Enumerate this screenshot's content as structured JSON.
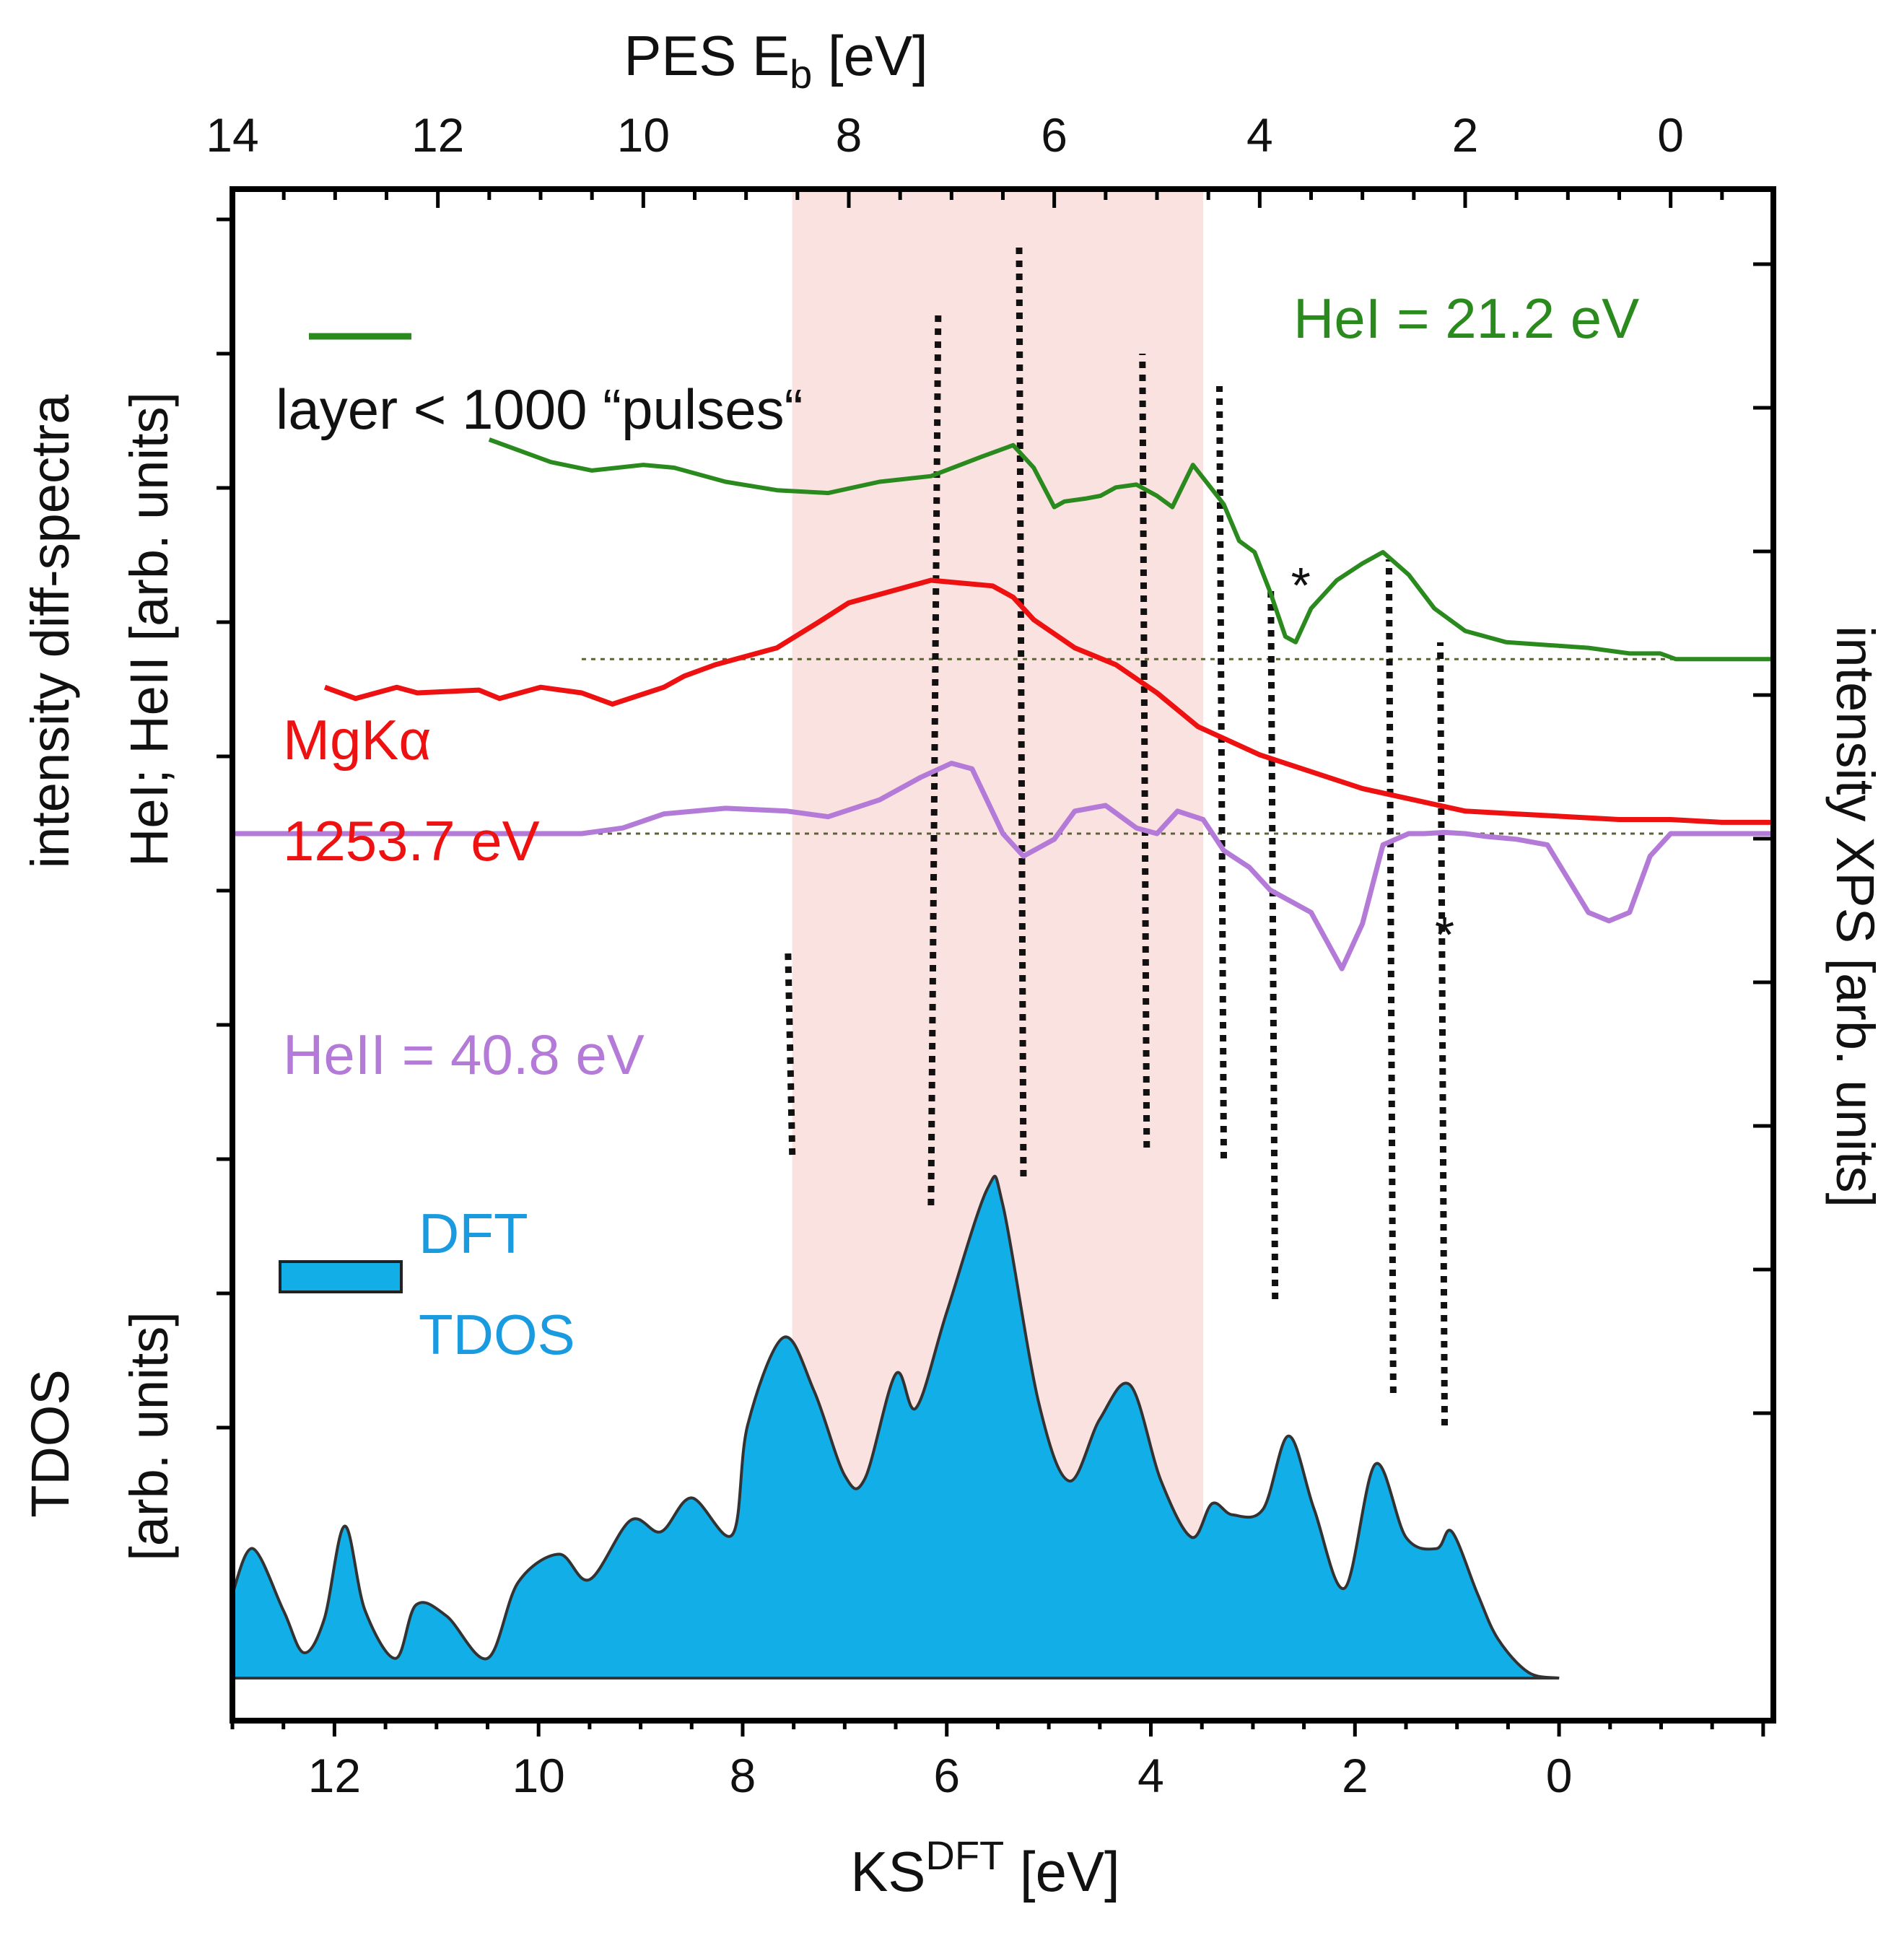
{
  "chart_data": {
    "type": "line",
    "top_axis": {
      "label": "PES E",
      "label_sub": "b",
      "label_unit": " [eV]",
      "range": [
        14,
        -1.0
      ],
      "ticks": [
        "14",
        "12",
        "10",
        "8",
        "6",
        "4",
        "2",
        "0"
      ]
    },
    "bottom_axis": {
      "label": "KS",
      "label_sup": "DFT",
      "label_unit": " [eV]",
      "range": [
        13,
        -2.1
      ],
      "ticks": [
        "12",
        "10",
        "8",
        "6",
        "4",
        "2",
        "0"
      ]
    },
    "left_axis_label_line1": "intensity diff-spectra",
    "left_axis_label_line2": "HeI; HeII [arb. units]",
    "left_axis_label_lower_line1": "TDOS",
    "left_axis_label_lower_line2": "[arb. units]",
    "right_axis_label": "intensity XPS [arb. units]",
    "shaded_region_eb": [
      8.55,
      4.55
    ],
    "series": [
      {
        "name": "HeI = 21.2 eV",
        "color": "#2a8a1e",
        "label_note": "layer < 1000 “pulses“",
        "eb": [
          11.5,
          10.9,
          10.5,
          10.0,
          9.7,
          9.2,
          8.7,
          8.2,
          7.7,
          7.2,
          6.7,
          6.4,
          6.2,
          6.0,
          5.9,
          5.7,
          5.55,
          5.4,
          5.2,
          5.0,
          4.85,
          4.65,
          4.5,
          4.35,
          4.2,
          4.05,
          3.9,
          3.75,
          3.65,
          3.5,
          3.25,
          3.0,
          2.8,
          2.55,
          2.3,
          2.0,
          1.6,
          1.2,
          0.8,
          0.4,
          0.1,
          -0.05,
          -0.2,
          -1.0
        ],
        "y": [
          22.0,
          21.6,
          21.45,
          21.55,
          21.5,
          21.25,
          21.1,
          21.05,
          21.25,
          21.35,
          21.7,
          21.9,
          21.5,
          20.8,
          20.9,
          20.95,
          21.0,
          21.15,
          21.2,
          21.0,
          20.8,
          21.55,
          21.2,
          20.85,
          20.2,
          20.0,
          19.3,
          18.5,
          18.4,
          19.0,
          19.5,
          19.8,
          20.0,
          19.6,
          19.0,
          18.6,
          18.4,
          18.35,
          18.3,
          18.2,
          18.2,
          18.1,
          18.1,
          18.1
        ]
      },
      {
        "name": "MgKα",
        "name_line2": "1253.7 eV",
        "color": "#ee1111",
        "eb": [
          13.1,
          12.8,
          12.4,
          12.2,
          11.6,
          11.4,
          11.0,
          10.6,
          10.3,
          9.8,
          9.6,
          9.3,
          8.7,
          8.3,
          8.0,
          7.6,
          7.2,
          6.6,
          6.4,
          6.2,
          5.8,
          5.4,
          5.0,
          4.6,
          4.0,
          3.5,
          3.0,
          2.5,
          2.0,
          1.5,
          1.0,
          0.5,
          0.0,
          -0.5,
          -1.0
        ],
        "y": [
          17.6,
          17.4,
          17.6,
          17.5,
          17.55,
          17.4,
          17.6,
          17.5,
          17.3,
          17.6,
          17.8,
          18.0,
          18.3,
          18.75,
          19.1,
          19.3,
          19.5,
          19.4,
          19.2,
          18.8,
          18.3,
          18.0,
          17.5,
          16.9,
          16.4,
          16.1,
          15.8,
          15.6,
          15.4,
          15.35,
          15.3,
          15.25,
          15.25,
          15.2,
          15.2
        ]
      },
      {
        "name": "HeII = 40.8 eV",
        "color": "#b37ad8",
        "eb": [
          14.0,
          12.0,
          10.6,
          10.2,
          9.8,
          9.2,
          8.6,
          8.2,
          7.7,
          7.3,
          7.0,
          6.8,
          6.5,
          6.3,
          6.0,
          5.8,
          5.5,
          5.2,
          5.0,
          4.8,
          4.55,
          4.35,
          4.1,
          3.9,
          3.7,
          3.5,
          3.2,
          3.0,
          2.8,
          2.55,
          2.4,
          2.2,
          2.0,
          1.8,
          1.5,
          1.2,
          0.8,
          0.6,
          0.4,
          0.2,
          0.0,
          -0.3,
          -0.6,
          -1.0
        ],
        "y": [
          15.0,
          15.0,
          15.0,
          15.1,
          15.35,
          15.45,
          15.4,
          15.3,
          15.6,
          16.0,
          16.25,
          16.15,
          15.0,
          14.6,
          14.9,
          15.4,
          15.5,
          15.1,
          15.0,
          15.4,
          15.25,
          14.7,
          14.4,
          14.0,
          13.8,
          13.6,
          12.6,
          13.4,
          14.8,
          15.0,
          15.0,
          15.02,
          15.0,
          14.95,
          14.9,
          14.8,
          13.6,
          13.45,
          13.6,
          14.6,
          15.0,
          15.0,
          15.0,
          15.0
        ]
      },
      {
        "name": "DFT",
        "name_line2": "TDOS",
        "color": "#12aee8",
        "ks": [
          13.0,
          12.8,
          12.5,
          12.3,
          12.1,
          11.9,
          11.7,
          11.4,
          11.2,
          10.9,
          10.5,
          10.2,
          9.8,
          9.5,
          9.1,
          8.8,
          8.5,
          8.1,
          7.95,
          7.6,
          7.3,
          7.0,
          6.8,
          6.5,
          6.3,
          6.0,
          5.6,
          5.45,
          5.1,
          4.8,
          4.5,
          4.2,
          3.9,
          3.6,
          3.4,
          3.2,
          2.9,
          2.65,
          2.4,
          2.1,
          1.8,
          1.5,
          1.2,
          1.05,
          0.8,
          0.6,
          0.3,
          0.0
        ],
        "y": [
          1.5,
          2.3,
          1.2,
          0.45,
          1.05,
          2.7,
          1.2,
          0.35,
          1.3,
          1.1,
          0.35,
          1.7,
          2.2,
          1.75,
          2.8,
          2.6,
          3.2,
          2.55,
          4.5,
          6.05,
          5.1,
          3.6,
          3.55,
          5.4,
          4.8,
          6.5,
          8.7,
          8.4,
          4.9,
          3.5,
          4.6,
          5.2,
          3.5,
          2.5,
          3.1,
          2.9,
          3.0,
          4.3,
          3.0,
          1.6,
          3.8,
          2.5,
          2.3,
          2.6,
          1.5,
          0.7,
          0.1,
          0.0
        ]
      }
    ],
    "reference_lines_y": [
      18.1,
      15.0
    ],
    "markers": [
      {
        "text": "*",
        "eb": 3.6,
        "y": 19.1
      },
      {
        "text": "*",
        "eb": 2.2,
        "y": 12.9
      }
    ],
    "dotted_connectors_eb": [
      8.55,
      7.2,
      6.3,
      5.1,
      4.35,
      3.85,
      2.7,
      2.2
    ]
  }
}
